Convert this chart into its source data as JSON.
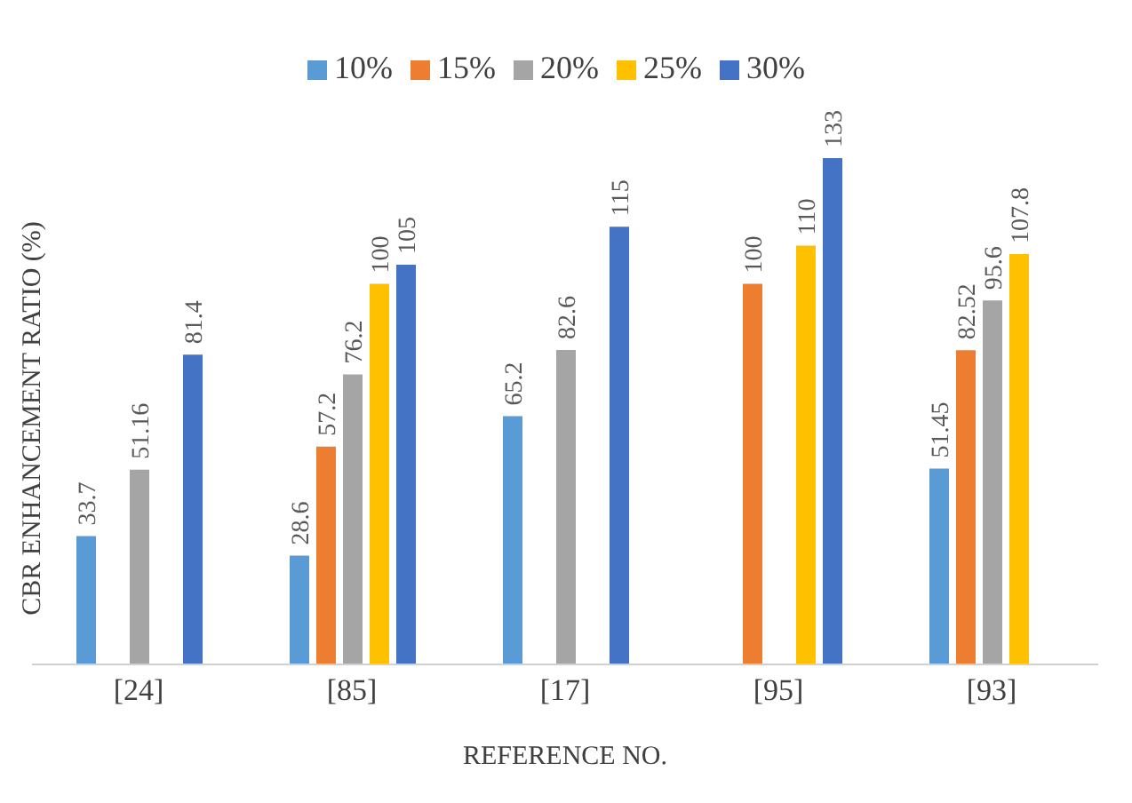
{
  "chart_data": {
    "type": "bar",
    "xlabel": "REFERENCE NO.",
    "ylabel": "CBR ENHANCEMENT RATIO (%)",
    "categories": [
      "[24]",
      "[85]",
      "[17]",
      "[95]",
      "[93]"
    ],
    "series": [
      {
        "name": "10%",
        "color": "#5b9bd5",
        "values": [
          33.7,
          28.6,
          65.2,
          null,
          51.45
        ]
      },
      {
        "name": "15%",
        "color": "#ed7d31",
        "values": [
          null,
          57.2,
          null,
          100,
          82.52
        ]
      },
      {
        "name": "20%",
        "color": "#a5a5a5",
        "values": [
          51.16,
          76.2,
          82.6,
          null,
          95.6
        ]
      },
      {
        "name": "25%",
        "color": "#ffc000",
        "values": [
          null,
          100,
          null,
          110,
          107.8
        ]
      },
      {
        "name": "30%",
        "color": "#4472c4",
        "values": [
          81.4,
          105,
          115,
          133,
          null
        ]
      }
    ],
    "data_labels": true,
    "legend": "top",
    "tick_labels": "x"
  }
}
